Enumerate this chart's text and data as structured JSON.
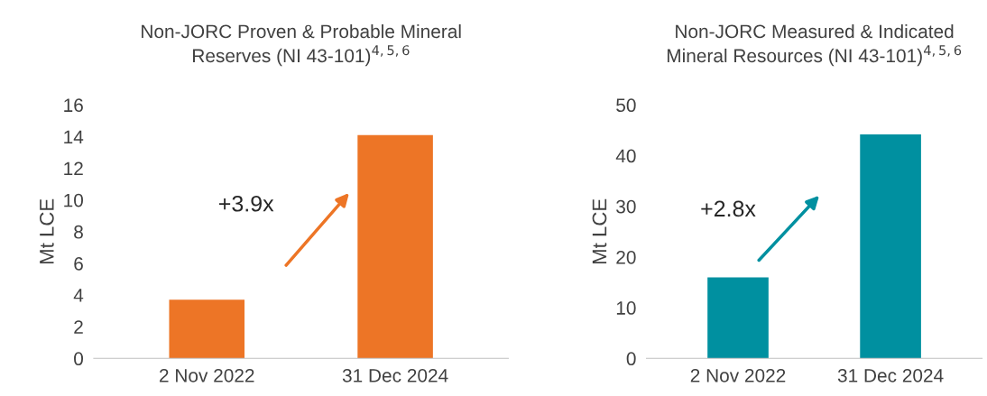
{
  "chart_data": [
    {
      "type": "bar",
      "title": "Non-JORC Proven & Probable Mineral\nReserves (NI 43-101)$^{4,5,6}$",
      "ylabel": "Mt LCE",
      "categories": [
        "2 Nov 2022",
        "31 Dec 2024"
      ],
      "values": [
        3.7,
        14.1
      ],
      "color": "#ed7526",
      "ylim": [
        0,
        16
      ],
      "yticks": [
        0,
        2,
        4,
        6,
        8,
        10,
        12,
        14,
        16
      ],
      "grid": false,
      "legend": false,
      "annotations": [
        "+3.9x"
      ]
    },
    {
      "type": "bar",
      "title": "Non-JORC Measured & Indicated\nMineral Resources (NI 43-101)$^{4,5,6}$",
      "ylabel": "Mt LCE",
      "categories": [
        "2 Nov 2022",
        "31 Dec 2024"
      ],
      "values": [
        16,
        44.2
      ],
      "color": "#0090a0",
      "ylim": [
        0,
        50
      ],
      "yticks": [
        0,
        10,
        20,
        30,
        40,
        50
      ],
      "grid": false,
      "legend": false,
      "annotations": [
        "+2.8x"
      ]
    }
  ]
}
